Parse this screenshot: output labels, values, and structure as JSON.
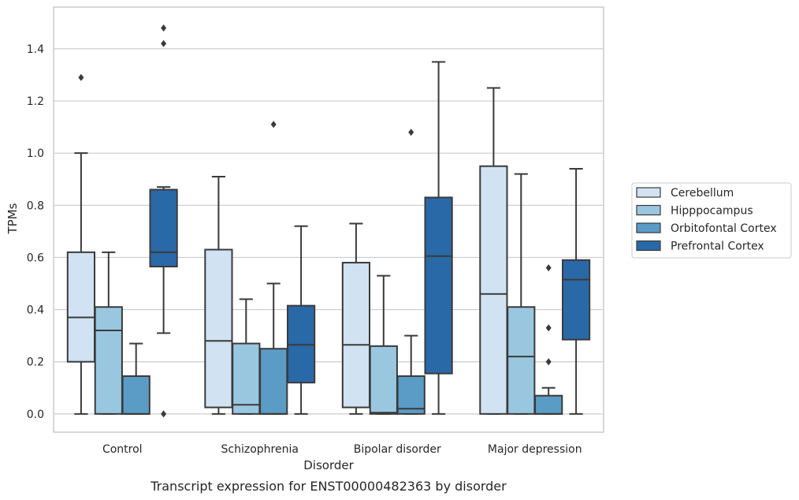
{
  "caption": "Transcript expression for ENST00000482363 by disorder",
  "chart_data": {
    "type": "box",
    "title": "",
    "xlabel": "Disorder",
    "ylabel": "TPMs",
    "ylim": [
      -0.07,
      1.56
    ],
    "yticks": [
      "0.0",
      "0.2",
      "0.4",
      "0.6",
      "0.8",
      "1.0",
      "1.2",
      "1.4"
    ],
    "grid": "horizontal",
    "legend_position": "right",
    "categories": [
      "Control",
      "Schizophrenia",
      "Bipolar disorder",
      "Major depression"
    ],
    "series": [
      {
        "name": "Cerebellum",
        "color": "#d1e2f2",
        "boxes": [
          {
            "whisker_low": 0.0,
            "q1": 0.2,
            "median": 0.37,
            "q3": 0.62,
            "whisker_high": 1.0,
            "outliers": [
              1.29
            ]
          },
          {
            "whisker_low": 0.0,
            "q1": 0.025,
            "median": 0.28,
            "q3": 0.63,
            "whisker_high": 0.91,
            "outliers": []
          },
          {
            "whisker_low": 0.0,
            "q1": 0.025,
            "median": 0.265,
            "q3": 0.58,
            "whisker_high": 0.73,
            "outliers": []
          },
          {
            "whisker_low": 0.0,
            "q1": 0.0,
            "median": 0.46,
            "q3": 0.95,
            "whisker_high": 1.25,
            "outliers": []
          }
        ]
      },
      {
        "name": "Hipppocampus",
        "color": "#9ac7e0",
        "boxes": [
          {
            "whisker_low": 0.0,
            "q1": 0.0,
            "median": 0.32,
            "q3": 0.41,
            "whisker_high": 0.62,
            "outliers": []
          },
          {
            "whisker_low": 0.0,
            "q1": 0.0,
            "median": 0.035,
            "q3": 0.27,
            "whisker_high": 0.44,
            "outliers": []
          },
          {
            "whisker_low": 0.0,
            "q1": 0.0,
            "median": 0.005,
            "q3": 0.26,
            "whisker_high": 0.53,
            "outliers": []
          },
          {
            "whisker_low": 0.0,
            "q1": 0.0,
            "median": 0.22,
            "q3": 0.41,
            "whisker_high": 0.92,
            "outliers": []
          }
        ]
      },
      {
        "name": "Orbitofontal Cortex",
        "color": "#5b9cc7",
        "boxes": [
          {
            "whisker_low": 0.0,
            "q1": 0.0,
            "median": 0.0,
            "q3": 0.145,
            "whisker_high": 0.27,
            "outliers": []
          },
          {
            "whisker_low": 0.0,
            "q1": 0.0,
            "median": 0.0,
            "q3": 0.25,
            "whisker_high": 0.5,
            "outliers": [
              1.11
            ]
          },
          {
            "whisker_low": 0.0,
            "q1": 0.0,
            "median": 0.02,
            "q3": 0.145,
            "whisker_high": 0.3,
            "outliers": [
              1.08
            ]
          },
          {
            "whisker_low": 0.0,
            "q1": 0.0,
            "median": 0.0,
            "q3": 0.07,
            "whisker_high": 0.1,
            "outliers": [
              0.2,
              0.33,
              0.56
            ]
          }
        ]
      },
      {
        "name": "Prefrontal Cortex",
        "color": "#2a69a8",
        "boxes": [
          {
            "whisker_low": 0.31,
            "q1": 0.565,
            "median": 0.62,
            "q3": 0.86,
            "whisker_high": 0.87,
            "outliers": [
              0.0,
              1.42,
              1.48
            ]
          },
          {
            "whisker_low": 0.0,
            "q1": 0.12,
            "median": 0.265,
            "q3": 0.415,
            "whisker_high": 0.72,
            "outliers": []
          },
          {
            "whisker_low": 0.0,
            "q1": 0.155,
            "median": 0.605,
            "q3": 0.83,
            "whisker_high": 1.35,
            "outliers": []
          },
          {
            "whisker_low": 0.0,
            "q1": 0.285,
            "median": 0.515,
            "q3": 0.59,
            "whisker_high": 0.94,
            "outliers": []
          }
        ]
      }
    ]
  }
}
